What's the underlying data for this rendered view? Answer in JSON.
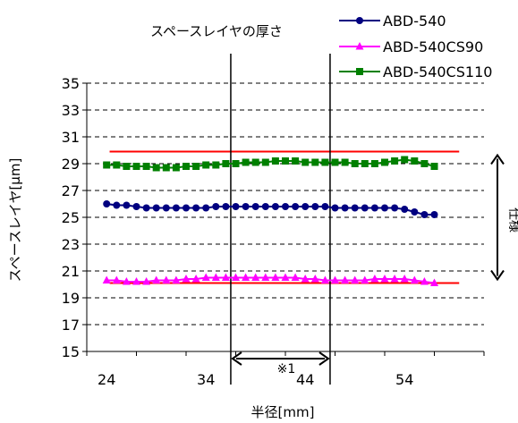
{
  "chart_data": {
    "type": "line",
    "title": "スペースレイヤの厚さ",
    "xlabel": "半径[mm]",
    "ylabel": "スペースレイヤ[μm]",
    "xlim": [
      22,
      62
    ],
    "ylim": [
      15,
      35
    ],
    "x_ticks": [
      24,
      34,
      44,
      54
    ],
    "y_ticks": [
      15,
      17,
      19,
      21,
      23,
      25,
      27,
      29,
      31,
      33,
      35
    ],
    "grid": "horizontal-dashed",
    "legend_position": "top-right",
    "x": [
      24,
      25,
      26,
      27,
      28,
      29,
      30,
      31,
      32,
      33,
      34,
      35,
      36,
      37,
      38,
      39,
      40,
      41,
      42,
      43,
      44,
      45,
      46,
      47,
      48,
      49,
      50,
      51,
      52,
      53,
      54,
      55,
      56,
      57
    ],
    "series": [
      {
        "name": "ABD-540",
        "color": "#000080",
        "marker": "circle",
        "values": [
          26.0,
          25.9,
          25.9,
          25.8,
          25.7,
          25.7,
          25.7,
          25.7,
          25.7,
          25.7,
          25.7,
          25.8,
          25.8,
          25.8,
          25.8,
          25.8,
          25.8,
          25.8,
          25.8,
          25.8,
          25.8,
          25.8,
          25.8,
          25.7,
          25.7,
          25.7,
          25.7,
          25.7,
          25.7,
          25.7,
          25.6,
          25.4,
          25.2,
          25.2
        ]
      },
      {
        "name": "ABD-540CS90",
        "color": "#ff00ff",
        "marker": "triangle",
        "values": [
          20.3,
          20.3,
          20.2,
          20.2,
          20.2,
          20.3,
          20.3,
          20.3,
          20.4,
          20.4,
          20.5,
          20.5,
          20.5,
          20.5,
          20.5,
          20.5,
          20.5,
          20.5,
          20.5,
          20.5,
          20.4,
          20.4,
          20.3,
          20.3,
          20.3,
          20.3,
          20.3,
          20.4,
          20.4,
          20.4,
          20.4,
          20.3,
          20.2,
          20.1
        ]
      },
      {
        "name": "ABD-540CS110",
        "color": "#008000",
        "marker": "square",
        "values": [
          28.9,
          28.9,
          28.8,
          28.8,
          28.8,
          28.7,
          28.7,
          28.7,
          28.8,
          28.8,
          28.9,
          28.9,
          29.0,
          29.0,
          29.1,
          29.1,
          29.1,
          29.2,
          29.2,
          29.2,
          29.1,
          29.1,
          29.1,
          29.1,
          29.1,
          29.0,
          29.0,
          29.0,
          29.1,
          29.2,
          29.3,
          29.2,
          29.0,
          28.8
        ]
      }
    ],
    "reference_lines": {
      "values": [
        29.9,
        20.1
      ],
      "color": "#ff0000"
    },
    "range_markers": {
      "x": [
        36.5,
        46.5
      ],
      "label": "※1"
    },
    "right_annotation": "仕様",
    "range_arrow_color": "#000000"
  }
}
